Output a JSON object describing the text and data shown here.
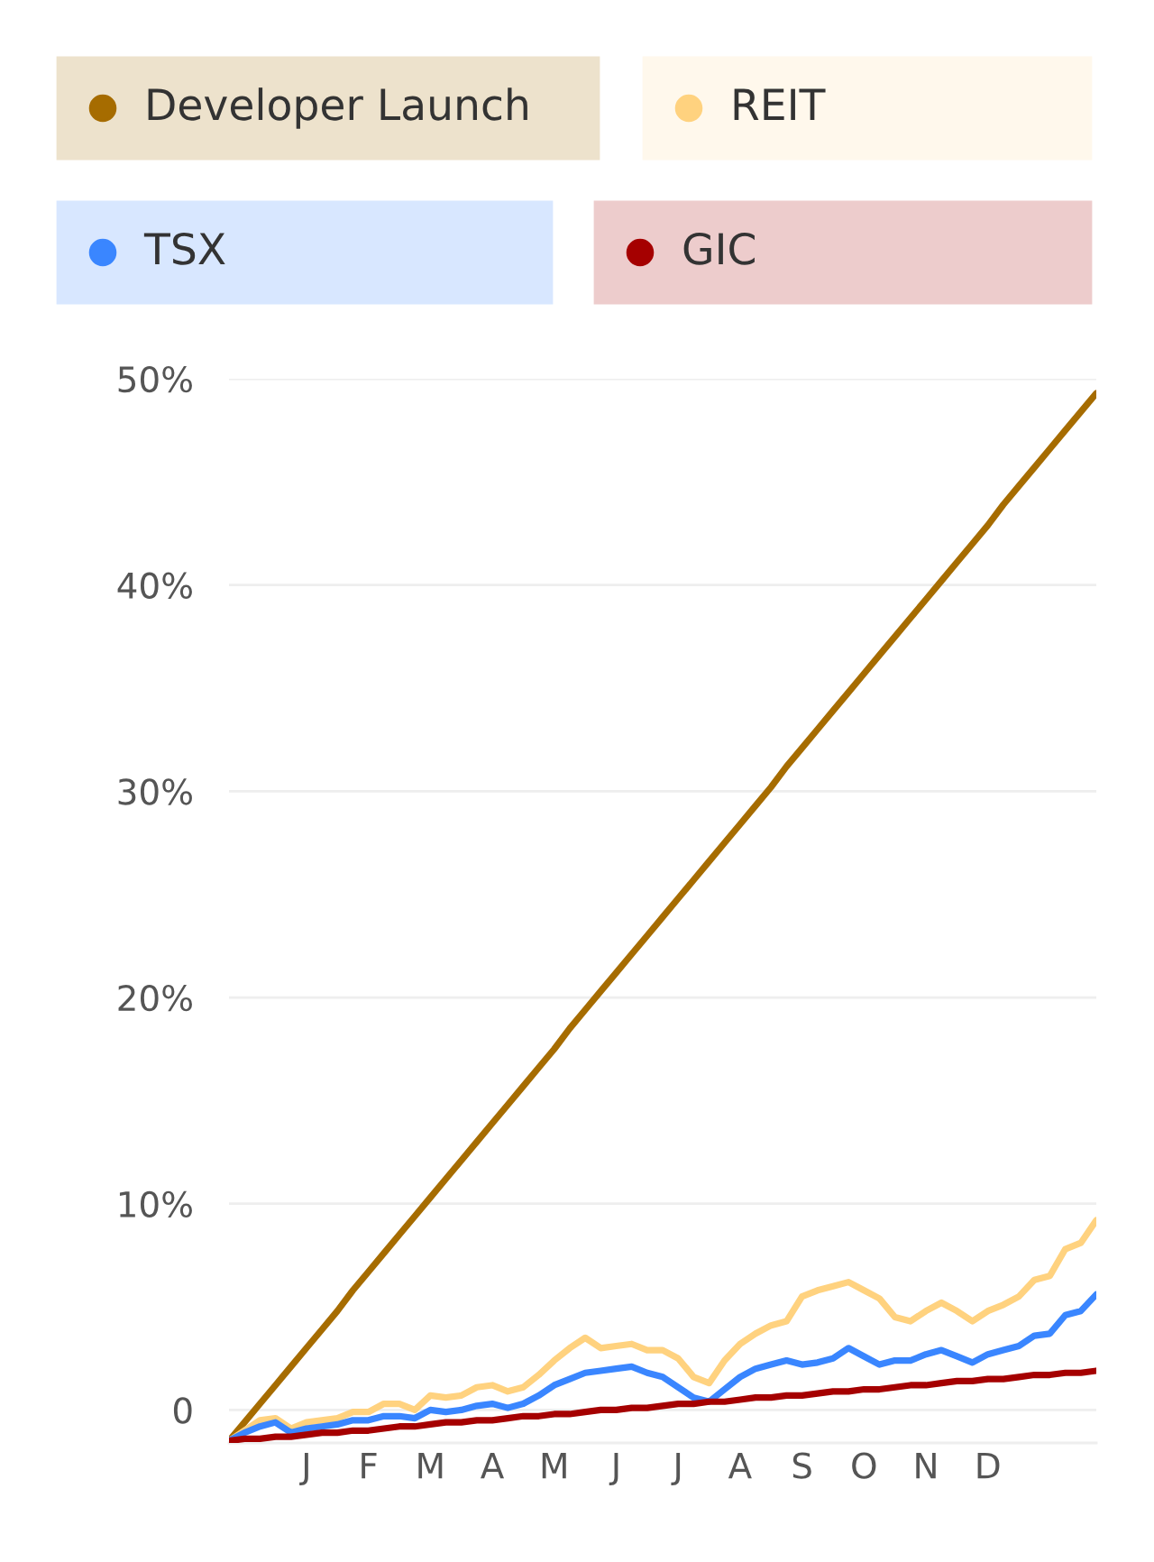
{
  "chart_data": {
    "type": "line",
    "categories": [
      null,
      null,
      null,
      null,
      null,
      "J",
      null,
      null,
      null,
      "F",
      null,
      null,
      null,
      "M",
      null,
      null,
      null,
      "A",
      null,
      null,
      null,
      "M",
      null,
      null,
      null,
      "J",
      null,
      null,
      null,
      "J",
      null,
      null,
      null,
      "A",
      null,
      null,
      null,
      "S",
      null,
      null,
      null,
      "O",
      null,
      null,
      null,
      "N",
      null,
      null,
      null,
      "D",
      null,
      null,
      null,
      null,
      null,
      null,
      null
    ],
    "ylim": [
      -1.6,
      50
    ],
    "yticks": [
      {
        "value": 0,
        "label": "0"
      },
      {
        "value": 10,
        "label": "10%"
      },
      {
        "value": 20,
        "label": "20%"
      },
      {
        "value": 30,
        "label": "30%"
      },
      {
        "value": 40,
        "label": "40%"
      },
      {
        "value": 50,
        "label": "50%"
      }
    ],
    "grid": "y",
    "legend": "top",
    "series": [
      {
        "name": "Developer Launch",
        "color": "#a66c00",
        "values": [
          -1.5,
          -0.6,
          0.3,
          1.2,
          2.1,
          3.0,
          3.9,
          4.8,
          5.8,
          6.7,
          7.6,
          8.5,
          9.4,
          10.3,
          11.2,
          12.1,
          13.0,
          13.9,
          14.8,
          15.7,
          16.6,
          17.5,
          18.5,
          19.4,
          20.3,
          21.2,
          22.1,
          23.0,
          23.9,
          24.8,
          25.7,
          26.6,
          27.5,
          28.4,
          29.3,
          30.2,
          31.2,
          32.1,
          33.0,
          33.9,
          34.8,
          35.7,
          36.6,
          37.5,
          38.4,
          39.3,
          40.2,
          41.1,
          42.0,
          42.9,
          43.9,
          44.8,
          45.7,
          46.6,
          47.5,
          48.4,
          49.3
        ]
      },
      {
        "name": "REIT",
        "color": "#ffd27f",
        "values": [
          -1.5,
          -1.0,
          -0.5,
          -0.4,
          -0.9,
          -0.6,
          -0.5,
          -0.4,
          -0.1,
          -0.1,
          0.3,
          0.3,
          0.0,
          0.7,
          0.6,
          0.7,
          1.1,
          1.2,
          0.9,
          1.1,
          1.7,
          2.4,
          3.0,
          3.5,
          3.0,
          3.1,
          3.2,
          2.9,
          2.9,
          2.5,
          1.6,
          1.3,
          2.4,
          3.2,
          3.7,
          4.1,
          4.3,
          5.5,
          5.8,
          6.0,
          6.2,
          5.8,
          5.4,
          4.5,
          4.3,
          4.8,
          5.2,
          4.8,
          4.3,
          4.8,
          5.1,
          5.5,
          6.3,
          6.5,
          7.8,
          8.1,
          9.2
        ]
      },
      {
        "name": "TSX",
        "color": "#3a86ff",
        "values": [
          -1.5,
          -1.1,
          -0.8,
          -0.6,
          -1.1,
          -0.9,
          -0.8,
          -0.7,
          -0.5,
          -0.5,
          -0.3,
          -0.3,
          -0.4,
          0.0,
          -0.1,
          0.0,
          0.2,
          0.3,
          0.1,
          0.3,
          0.7,
          1.2,
          1.5,
          1.8,
          1.9,
          2.0,
          2.1,
          1.8,
          1.6,
          1.1,
          0.6,
          0.4,
          1.0,
          1.6,
          2.0,
          2.2,
          2.4,
          2.2,
          2.3,
          2.5,
          3.0,
          2.6,
          2.2,
          2.4,
          2.4,
          2.7,
          2.9,
          2.6,
          2.3,
          2.7,
          2.9,
          3.1,
          3.6,
          3.7,
          4.6,
          4.8,
          5.6
        ]
      },
      {
        "name": "GIC",
        "color": "#a50000",
        "values": [
          -1.5,
          -1.4,
          -1.4,
          -1.3,
          -1.3,
          -1.2,
          -1.1,
          -1.1,
          -1.0,
          -1.0,
          -0.9,
          -0.8,
          -0.8,
          -0.7,
          -0.6,
          -0.6,
          -0.5,
          -0.5,
          -0.4,
          -0.3,
          -0.3,
          -0.2,
          -0.2,
          -0.1,
          0.0,
          0.0,
          0.1,
          0.1,
          0.2,
          0.3,
          0.3,
          0.4,
          0.4,
          0.5,
          0.6,
          0.6,
          0.7,
          0.7,
          0.8,
          0.9,
          0.9,
          1.0,
          1.0,
          1.1,
          1.2,
          1.2,
          1.3,
          1.4,
          1.4,
          1.5,
          1.5,
          1.6,
          1.7,
          1.7,
          1.8,
          1.8,
          1.9
        ]
      }
    ]
  }
}
